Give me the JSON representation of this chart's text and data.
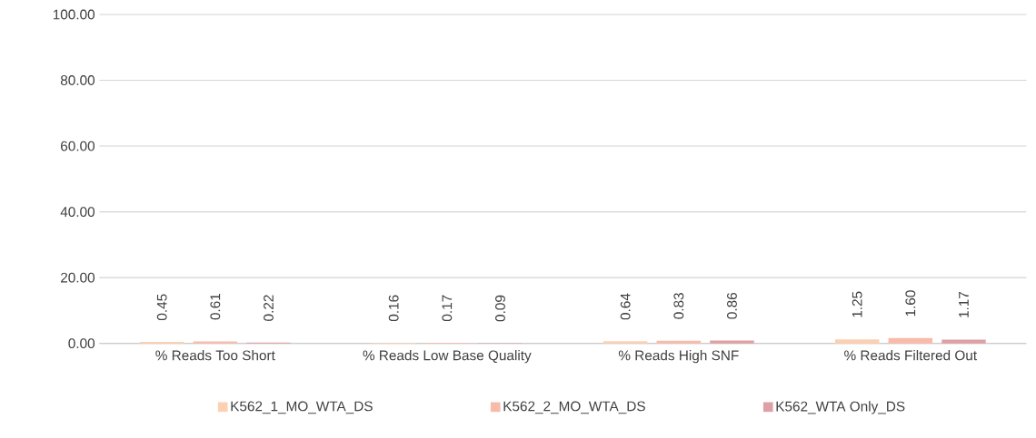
{
  "chart_data": {
    "type": "bar",
    "categories": [
      "% Reads Too Short",
      "% Reads Low Base Quality",
      "% Reads High SNF",
      "% Reads Filtered Out"
    ],
    "series": [
      {
        "name": "K562_1_MO_WTA_DS",
        "color": "#fdd0b1",
        "values": [
          0.45,
          0.16,
          0.64,
          1.25
        ],
        "value_labels": [
          "0.45",
          "0.16",
          "0.64",
          "1.25"
        ]
      },
      {
        "name": "K562_2_MO_WTA_DS",
        "color": "#f9bba9",
        "values": [
          0.61,
          0.17,
          0.83,
          1.6
        ],
        "value_labels": [
          "0.61",
          "0.17",
          "0.83",
          "1.60"
        ]
      },
      {
        "name": "K562_WTA Only_DS",
        "color": "#dfa0a5",
        "values": [
          0.22,
          0.09,
          0.86,
          1.17
        ],
        "value_labels": [
          "0.22",
          "0.09",
          "0.86",
          "1.17"
        ]
      }
    ],
    "ylim": [
      0,
      100
    ],
    "yticks": [
      {
        "value": 0,
        "label": "0.00"
      },
      {
        "value": 20,
        "label": "20.00"
      },
      {
        "value": 40,
        "label": "40.00"
      },
      {
        "value": 60,
        "label": "60.00"
      },
      {
        "value": 80,
        "label": "80.00"
      },
      {
        "value": 100,
        "label": "100.00"
      }
    ],
    "grid": "y",
    "legend": "bottom"
  }
}
